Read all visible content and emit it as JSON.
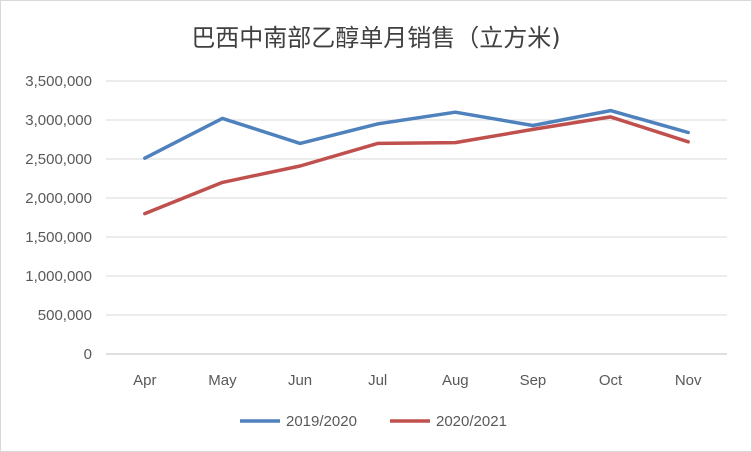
{
  "chart_data": {
    "type": "line",
    "title": "巴西中南部乙醇单月销售（立方米)",
    "categories": [
      "Apr",
      "May",
      "Jun",
      "Jul",
      "Aug",
      "Sep",
      "Oct",
      "Nov"
    ],
    "y_ticks": [
      "0",
      "500,000",
      "1,000,000",
      "1,500,000",
      "2,000,000",
      "2,500,000",
      "3,000,000",
      "3,500,000"
    ],
    "ylim": [
      0,
      3500000
    ],
    "grid": true,
    "legend_position": "bottom",
    "series": [
      {
        "name": "2019/2020",
        "color": "#4f81bd",
        "values": [
          2510000,
          3020000,
          2700000,
          2950000,
          3100000,
          2930000,
          3120000,
          2840000
        ]
      },
      {
        "name": "2020/2021",
        "color": "#c0504d",
        "values": [
          1800000,
          2200000,
          2410000,
          2700000,
          2710000,
          2880000,
          3040000,
          2720000
        ]
      }
    ]
  }
}
